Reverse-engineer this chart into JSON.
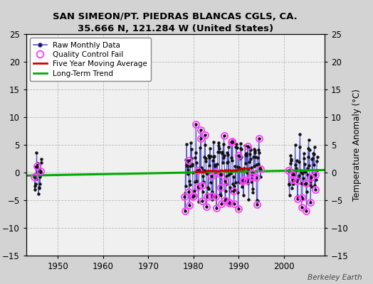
{
  "title": "SAN SIMEON/PT. PIEDRAS BLANCAS CGLS, CA.",
  "subtitle": "35.666 N, 121.284 W (United States)",
  "credit": "Berkeley Earth",
  "ylabel": "Temperature Anomaly (°C)",
  "xlim": [
    1943,
    2009
  ],
  "ylim": [
    -15,
    25
  ],
  "yticks": [
    -15,
    -10,
    -5,
    0,
    5,
    10,
    15,
    20,
    25
  ],
  "xticks": [
    1950,
    1960,
    1970,
    1980,
    1990,
    2000
  ],
  "fig_bg": "#d3d3d3",
  "plot_bg": "#f0f0f0",
  "grid_color": "#bbbbbb",
  "raw_line_color": "#5555cc",
  "raw_marker_color": "#111111",
  "qc_color": "#ff44ff",
  "moving_avg_color": "#cc0000",
  "trend_color": "#00aa00",
  "trend_x": [
    1943,
    2009
  ],
  "trend_y": [
    -0.55,
    0.45
  ]
}
